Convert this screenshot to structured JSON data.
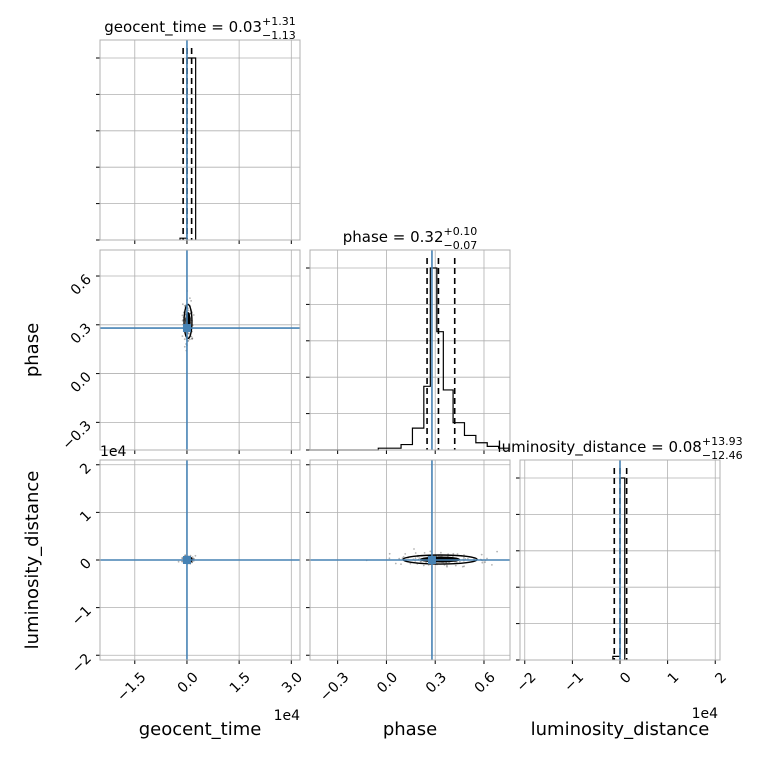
{
  "chart_data": {
    "type": "corner",
    "parameters": [
      "geocent_time",
      "phase",
      "luminosity_distance"
    ],
    "axis_labels": [
      "geocent_time",
      "phase",
      "luminosity_distance"
    ],
    "axis_offsets": {
      "geocent_time": "1e4",
      "luminosity_distance": "1e4"
    },
    "truth_color": "#4682b4",
    "truths": {
      "geocent_time": 0.0,
      "phase": 0.28,
      "luminosity_distance": 0.0
    },
    "titles": [
      {
        "param": "geocent_time",
        "prefix": "geocent_time = ",
        "median": "0.03",
        "plus": "+1.31",
        "minus": "−1.13"
      },
      {
        "param": "phase",
        "prefix": "phase = ",
        "median": "0.32",
        "plus": "+0.10",
        "minus": "−0.07"
      },
      {
        "param": "luminosity_distance",
        "prefix": "luminosity_distance = ",
        "median": "0.08",
        "plus": "+13.93",
        "minus": "−12.46"
      }
    ],
    "ranges": {
      "geocent_time": [
        -2.5,
        3.25
      ],
      "phase": [
        -0.47,
        0.76
      ],
      "luminosity_distance": [
        -2.1,
        2.1
      ]
    },
    "ticks": {
      "geocent_time": {
        "values": [
          -1.5,
          0.0,
          1.5,
          3.0
        ],
        "labels": [
          "−1.5",
          "0.0",
          "1.5",
          "3.0"
        ]
      },
      "phase": {
        "values": [
          -0.3,
          0.0,
          0.3,
          0.6
        ],
        "labels": [
          "−0.3",
          "0.0",
          "0.3",
          "0.6"
        ]
      },
      "luminosity_distance": {
        "values": [
          -2,
          -1,
          0,
          1,
          2
        ],
        "labels": [
          "−2",
          "−1",
          "0",
          "1",
          "2"
        ]
      }
    },
    "quantiles": {
      "geocent_time": [
        -0.11,
        0.003,
        0.134
      ],
      "phase": [
        0.25,
        0.32,
        0.42
      ],
      "luminosity_distance": [
        -0.12,
        0.0,
        0.14
      ]
    },
    "histograms": {
      "geocent_time": {
        "edges": [
          -0.2,
          0.0,
          0.25
        ],
        "counts": [
          1,
          100
        ]
      },
      "phase": {
        "edges": [
          -0.47,
          -0.4,
          -0.33,
          -0.26,
          -0.19,
          -0.12,
          -0.05,
          0.02,
          0.09,
          0.16,
          0.23,
          0.27,
          0.31,
          0.35,
          0.41,
          0.48,
          0.55,
          0.62,
          0.69,
          0.76
        ],
        "counts": [
          0,
          0,
          0,
          0,
          0,
          0,
          1,
          1,
          3,
          12,
          35,
          100,
          65,
          33,
          15,
          8,
          4,
          2,
          1
        ]
      },
      "luminosity_distance": {
        "edges": [
          -0.15,
          0.0,
          0.1
        ],
        "counts": [
          2,
          100
        ]
      }
    },
    "contours_2d": [
      {
        "x": "geocent_time",
        "y": "phase",
        "center": [
          0.03,
          0.32
        ],
        "spread": [
          0.06,
          0.055
        ]
      },
      {
        "x": "geocent_time",
        "y": "luminosity_distance",
        "center": [
          0.03,
          0.01
        ],
        "spread": [
          0.06,
          0.03
        ]
      },
      {
        "x": "phase",
        "y": "luminosity_distance",
        "center": [
          0.33,
          0.01
        ],
        "spread": [
          0.12,
          0.05
        ]
      }
    ]
  }
}
